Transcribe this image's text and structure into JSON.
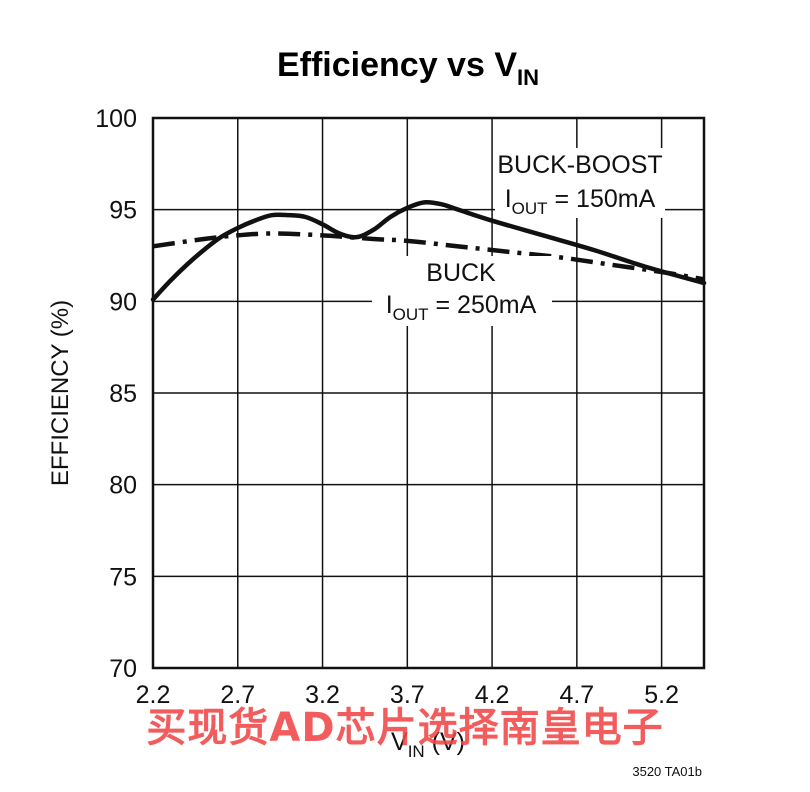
{
  "chart_data": {
    "type": "line",
    "title": "Efficiency vs V",
    "title_subscript": "IN",
    "xlabel": "V",
    "xlabel_subscript": "IN",
    "xlabel_suffix": " (V)",
    "ylabel": "EFFICIENCY (%)",
    "xlim": [
      2.2,
      5.45
    ],
    "ylim": [
      70,
      100
    ],
    "xticks": [
      "2.2",
      "2.7",
      "3.2",
      "3.7",
      "4.2",
      "4.7",
      "5.2"
    ],
    "yticks": [
      "70",
      "75",
      "80",
      "85",
      "90",
      "95",
      "100"
    ],
    "grid": true,
    "series": [
      {
        "name": "BUCK-BOOST",
        "style": "solid",
        "x": [
          2.2,
          2.3,
          2.4,
          2.5,
          2.6,
          2.7,
          2.8,
          2.9,
          3.0,
          3.1,
          3.2,
          3.3,
          3.4,
          3.5,
          3.6,
          3.7,
          3.8,
          3.9,
          4.0,
          4.2,
          4.5,
          4.8,
          5.1,
          5.45
        ],
        "values": [
          90.1,
          91.1,
          92.0,
          92.8,
          93.5,
          94.0,
          94.4,
          94.7,
          94.7,
          94.6,
          94.2,
          93.7,
          93.5,
          93.9,
          94.6,
          95.1,
          95.4,
          95.3,
          95.0,
          94.4,
          93.6,
          92.8,
          91.9,
          91.0
        ]
      },
      {
        "name": "BUCK",
        "style": "dash-dot",
        "x": [
          2.2,
          2.5,
          2.7,
          2.9,
          3.2,
          3.5,
          3.7,
          4.0,
          4.3,
          4.6,
          4.9,
          5.2,
          5.45
        ],
        "values": [
          93.0,
          93.4,
          93.6,
          93.7,
          93.6,
          93.4,
          93.3,
          93.0,
          92.7,
          92.4,
          92.0,
          91.6,
          91.2
        ]
      }
    ],
    "annotations": [
      {
        "text": "BUCK-BOOST",
        "line2_prefix": "I",
        "line2_sub": "OUT",
        "line2_rest": " = 150mA"
      },
      {
        "text": "BUCK",
        "line2_prefix": "I",
        "line2_sub": "OUT",
        "line2_rest": " = 250mA"
      }
    ],
    "figure_id": "3520 TA01b"
  },
  "watermark": "买现货AD芯片选择南皇电子"
}
